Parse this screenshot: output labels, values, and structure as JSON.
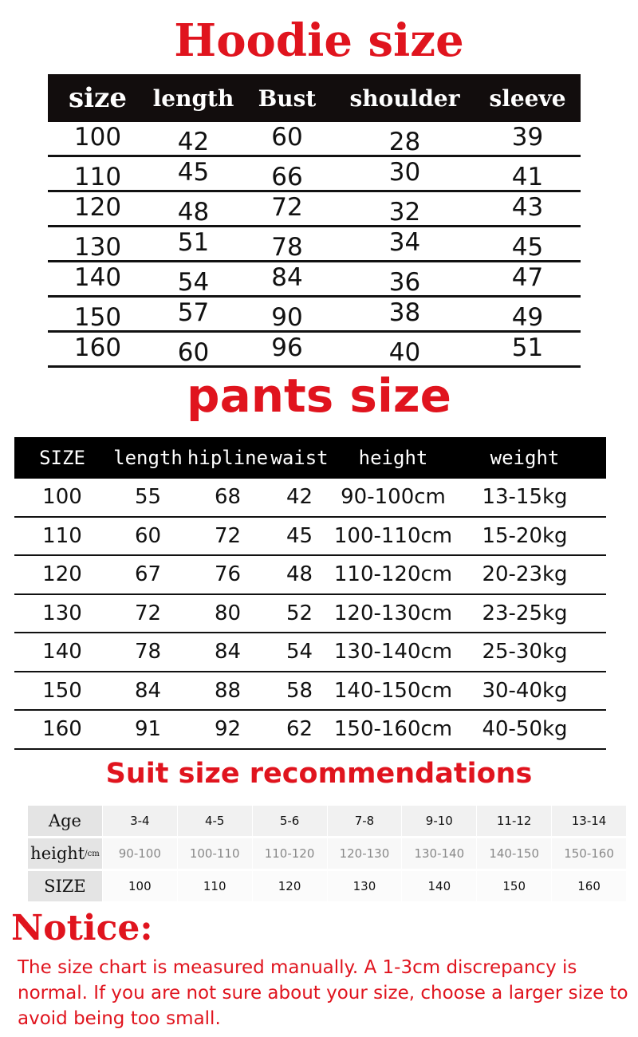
{
  "hoodie": {
    "title": "Hoodie size",
    "headers": [
      "size",
      "length",
      "Bust",
      "shoulder",
      "sleeve"
    ],
    "rows": [
      [
        "100",
        "42",
        "60",
        "28",
        "39"
      ],
      [
        "110",
        "45",
        "66",
        "30",
        "41"
      ],
      [
        "120",
        "48",
        "72",
        "32",
        "43"
      ],
      [
        "130",
        "51",
        "78",
        "34",
        "45"
      ],
      [
        "140",
        "54",
        "84",
        "36",
        "47"
      ],
      [
        "150",
        "57",
        "90",
        "38",
        "49"
      ],
      [
        "160",
        "60",
        "96",
        "40",
        "51"
      ]
    ]
  },
  "pants": {
    "title": "pants size",
    "headers": [
      "SIZE",
      "length",
      "hipline",
      "waist",
      "height",
      "weight"
    ],
    "rows": [
      [
        "100",
        "55",
        "68",
        "42",
        "90-100cm",
        "13-15kg"
      ],
      [
        "110",
        "60",
        "72",
        "45",
        "100-110cm",
        "15-20kg"
      ],
      [
        "120",
        "67",
        "76",
        "48",
        "110-120cm",
        "20-23kg"
      ],
      [
        "130",
        "72",
        "80",
        "52",
        "120-130cm",
        "23-25kg"
      ],
      [
        "140",
        "78",
        "84",
        "54",
        "130-140cm",
        "25-30kg"
      ],
      [
        "150",
        "84",
        "88",
        "58",
        "140-150cm",
        "30-40kg"
      ],
      [
        "160",
        "91",
        "92",
        "62",
        "150-160cm",
        "40-50kg"
      ]
    ]
  },
  "suit": {
    "title": "Suit size recommendations",
    "rows": [
      {
        "label": "Age",
        "values": [
          "3-4",
          "4-5",
          "5-6",
          "7-8",
          "9-10",
          "11-12",
          "13-14"
        ]
      },
      {
        "label": "height",
        "unit": "/cm",
        "values": [
          "90-100",
          "100-110",
          "110-120",
          "120-130",
          "130-140",
          "140-150",
          "150-160"
        ]
      },
      {
        "label": "SIZE",
        "values": [
          "100",
          "110",
          "120",
          "130",
          "140",
          "150",
          "160"
        ]
      }
    ]
  },
  "notice": {
    "title": "Notice:",
    "text": "The size chart is measured manually. A 1-3cm discrepancy is normal. If you are not sure about your size, choose a larger size to avoid being too small."
  }
}
